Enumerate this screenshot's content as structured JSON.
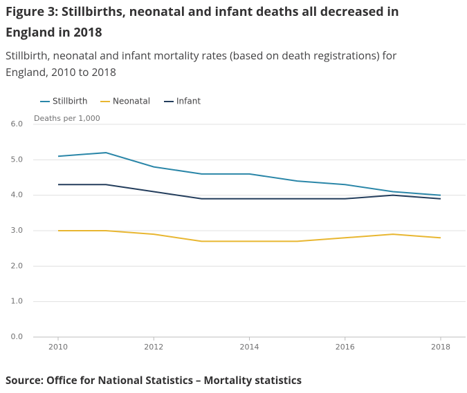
{
  "chart_data": {
    "type": "line",
    "title": "Figure 3: Stillbirths, neonatal and infant deaths all decreased in England in 2018",
    "subtitle": "Stillbirth, neonatal and infant mortality rates (based on death registrations) for England, 2010 to 2018",
    "y_label": "Deaths per 1,000",
    "source": "Source: Office for National Statistics – Mortality statistics",
    "x": [
      2010,
      2011,
      2012,
      2013,
      2014,
      2015,
      2016,
      2017,
      2018
    ],
    "series": [
      {
        "name": "Stillbirth",
        "color": "#2a86a8",
        "values": [
          5.1,
          5.2,
          4.8,
          4.6,
          4.6,
          4.4,
          4.3,
          4.1,
          4.0
        ]
      },
      {
        "name": "Neonatal",
        "color": "#e8b630",
        "values": [
          3.0,
          3.0,
          2.9,
          2.7,
          2.7,
          2.7,
          2.8,
          2.9,
          2.8
        ]
      },
      {
        "name": "Infant",
        "color": "#233d5c",
        "values": [
          4.3,
          4.3,
          4.1,
          3.9,
          3.9,
          3.9,
          3.9,
          4.0,
          3.9
        ]
      }
    ],
    "xlim": [
      2010,
      2018
    ],
    "xticks": [
      2010,
      2012,
      2014,
      2016,
      2018
    ],
    "ylim": [
      0,
      6
    ],
    "yticks": [
      {
        "value": 0,
        "label": "0.0"
      },
      {
        "value": 1,
        "label": "1.0"
      },
      {
        "value": 2,
        "label": "2.0"
      },
      {
        "value": 3,
        "label": "3.0"
      },
      {
        "value": 4,
        "label": "4.0"
      },
      {
        "value": 5,
        "label": "5.0"
      },
      {
        "value": 6,
        "label": "6.0"
      }
    ],
    "grid": true
  }
}
